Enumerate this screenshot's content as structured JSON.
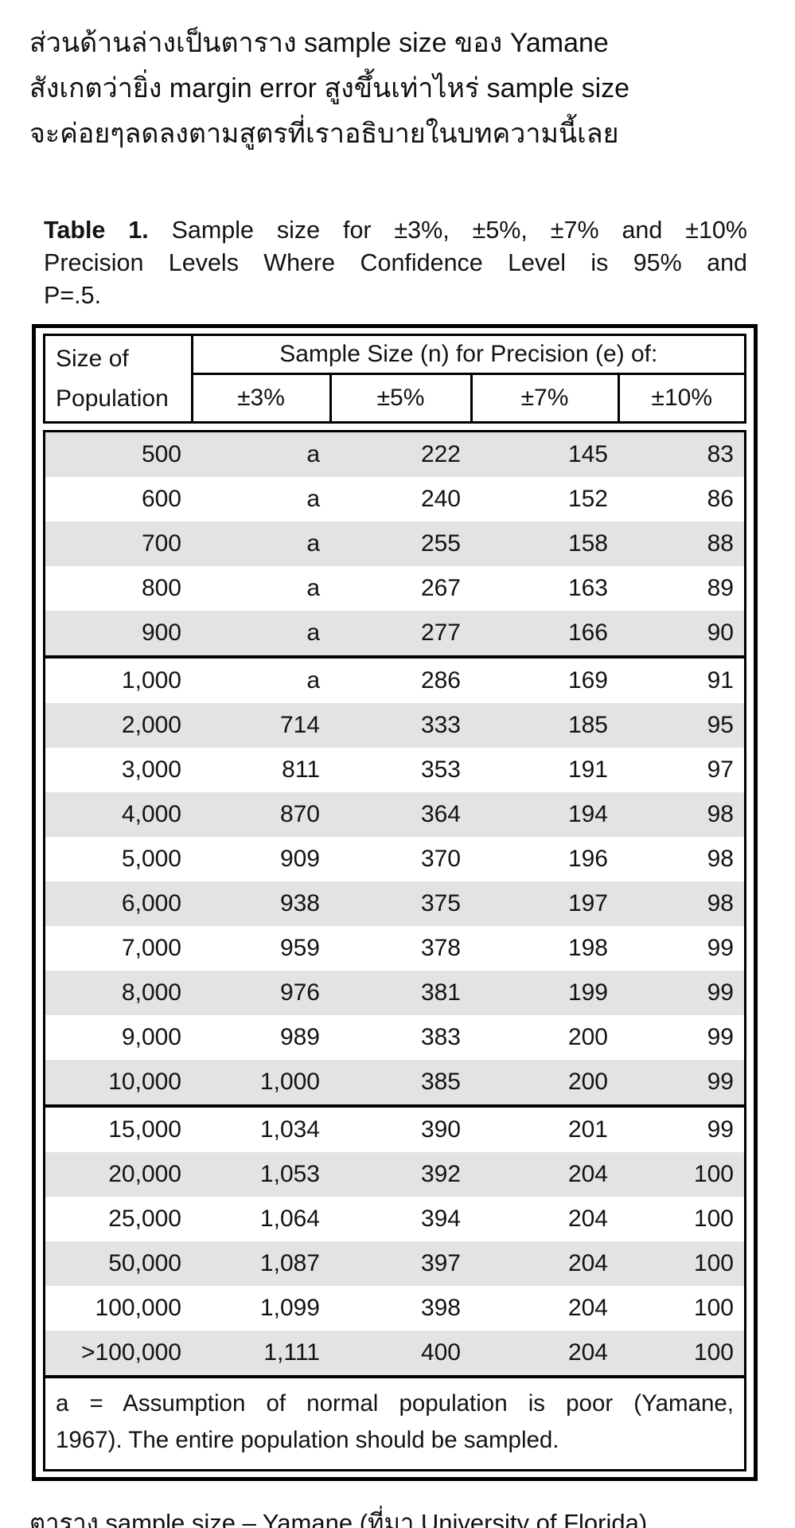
{
  "intro": {
    "lines": [
      "ส่วนด้านล่างเป็นตาราง sample size ของ Yamane",
      "สังเกตว่ายิ่ง margin error สูงขึ้นเท่าไหร่ sample size",
      "จะค่อยๆลดลงตามสูตรที่เราอธิบายในบทความนี้เลย"
    ]
  },
  "table": {
    "title_bold": "Table 1.",
    "title_line1_rest": "Sample size for ±3%, ±5%, ±7% and ±10%",
    "title_line2": "Precision Levels Where Confidence Level is 95% and",
    "title_line3": "P=.5.",
    "header": {
      "row_label_line1": "Size of",
      "row_label_line2": "Population",
      "span_label": "Sample Size (n) for Precision (e) of:",
      "precisions": [
        "±3%",
        "±5%",
        "±7%",
        "±10%"
      ]
    },
    "rows": [
      {
        "cells": [
          "500",
          "a",
          "222",
          "145",
          "83"
        ],
        "group_start": false
      },
      {
        "cells": [
          "600",
          "a",
          "240",
          "152",
          "86"
        ],
        "group_start": false
      },
      {
        "cells": [
          "700",
          "a",
          "255",
          "158",
          "88"
        ],
        "group_start": false
      },
      {
        "cells": [
          "800",
          "a",
          "267",
          "163",
          "89"
        ],
        "group_start": false
      },
      {
        "cells": [
          "900",
          "a",
          "277",
          "166",
          "90"
        ],
        "group_start": false
      },
      {
        "cells": [
          "1,000",
          "a",
          "286",
          "169",
          "91"
        ],
        "group_start": true
      },
      {
        "cells": [
          "2,000",
          "714",
          "333",
          "185",
          "95"
        ],
        "group_start": false
      },
      {
        "cells": [
          "3,000",
          "811",
          "353",
          "191",
          "97"
        ],
        "group_start": false
      },
      {
        "cells": [
          "4,000",
          "870",
          "364",
          "194",
          "98"
        ],
        "group_start": false
      },
      {
        "cells": [
          "5,000",
          "909",
          "370",
          "196",
          "98"
        ],
        "group_start": false
      },
      {
        "cells": [
          "6,000",
          "938",
          "375",
          "197",
          "98"
        ],
        "group_start": false
      },
      {
        "cells": [
          "7,000",
          "959",
          "378",
          "198",
          "99"
        ],
        "group_start": false
      },
      {
        "cells": [
          "8,000",
          "976",
          "381",
          "199",
          "99"
        ],
        "group_start": false
      },
      {
        "cells": [
          "9,000",
          "989",
          "383",
          "200",
          "99"
        ],
        "group_start": false
      },
      {
        "cells": [
          "10,000",
          "1,000",
          "385",
          "200",
          "99"
        ],
        "group_start": false
      },
      {
        "cells": [
          "15,000",
          "1,034",
          "390",
          "201",
          "99"
        ],
        "group_start": true
      },
      {
        "cells": [
          "20,000",
          "1,053",
          "392",
          "204",
          "100"
        ],
        "group_start": false
      },
      {
        "cells": [
          "25,000",
          "1,064",
          "394",
          "204",
          "100"
        ],
        "group_start": false
      },
      {
        "cells": [
          "50,000",
          "1,087",
          "397",
          "204",
          "100"
        ],
        "group_start": false
      },
      {
        "cells": [
          "100,000",
          "1,099",
          "398",
          "204",
          "100"
        ],
        "group_start": false
      },
      {
        "cells": [
          ">100,000",
          "1,111",
          "400",
          "204",
          "100"
        ],
        "group_start": false
      }
    ],
    "footnote_line1": "a = Assumption of normal population is poor (Yamane,",
    "footnote_line2": "1967).  The entire population should be sampled."
  },
  "caption": {
    "prefix": "ตาราง sample size – Yamane (ที่มา ",
    "link_text": "University of Florida",
    "suffix": ")"
  },
  "colors": {
    "row_stripe": "#e3e3e3",
    "border": "#000000",
    "text": "#131313"
  }
}
